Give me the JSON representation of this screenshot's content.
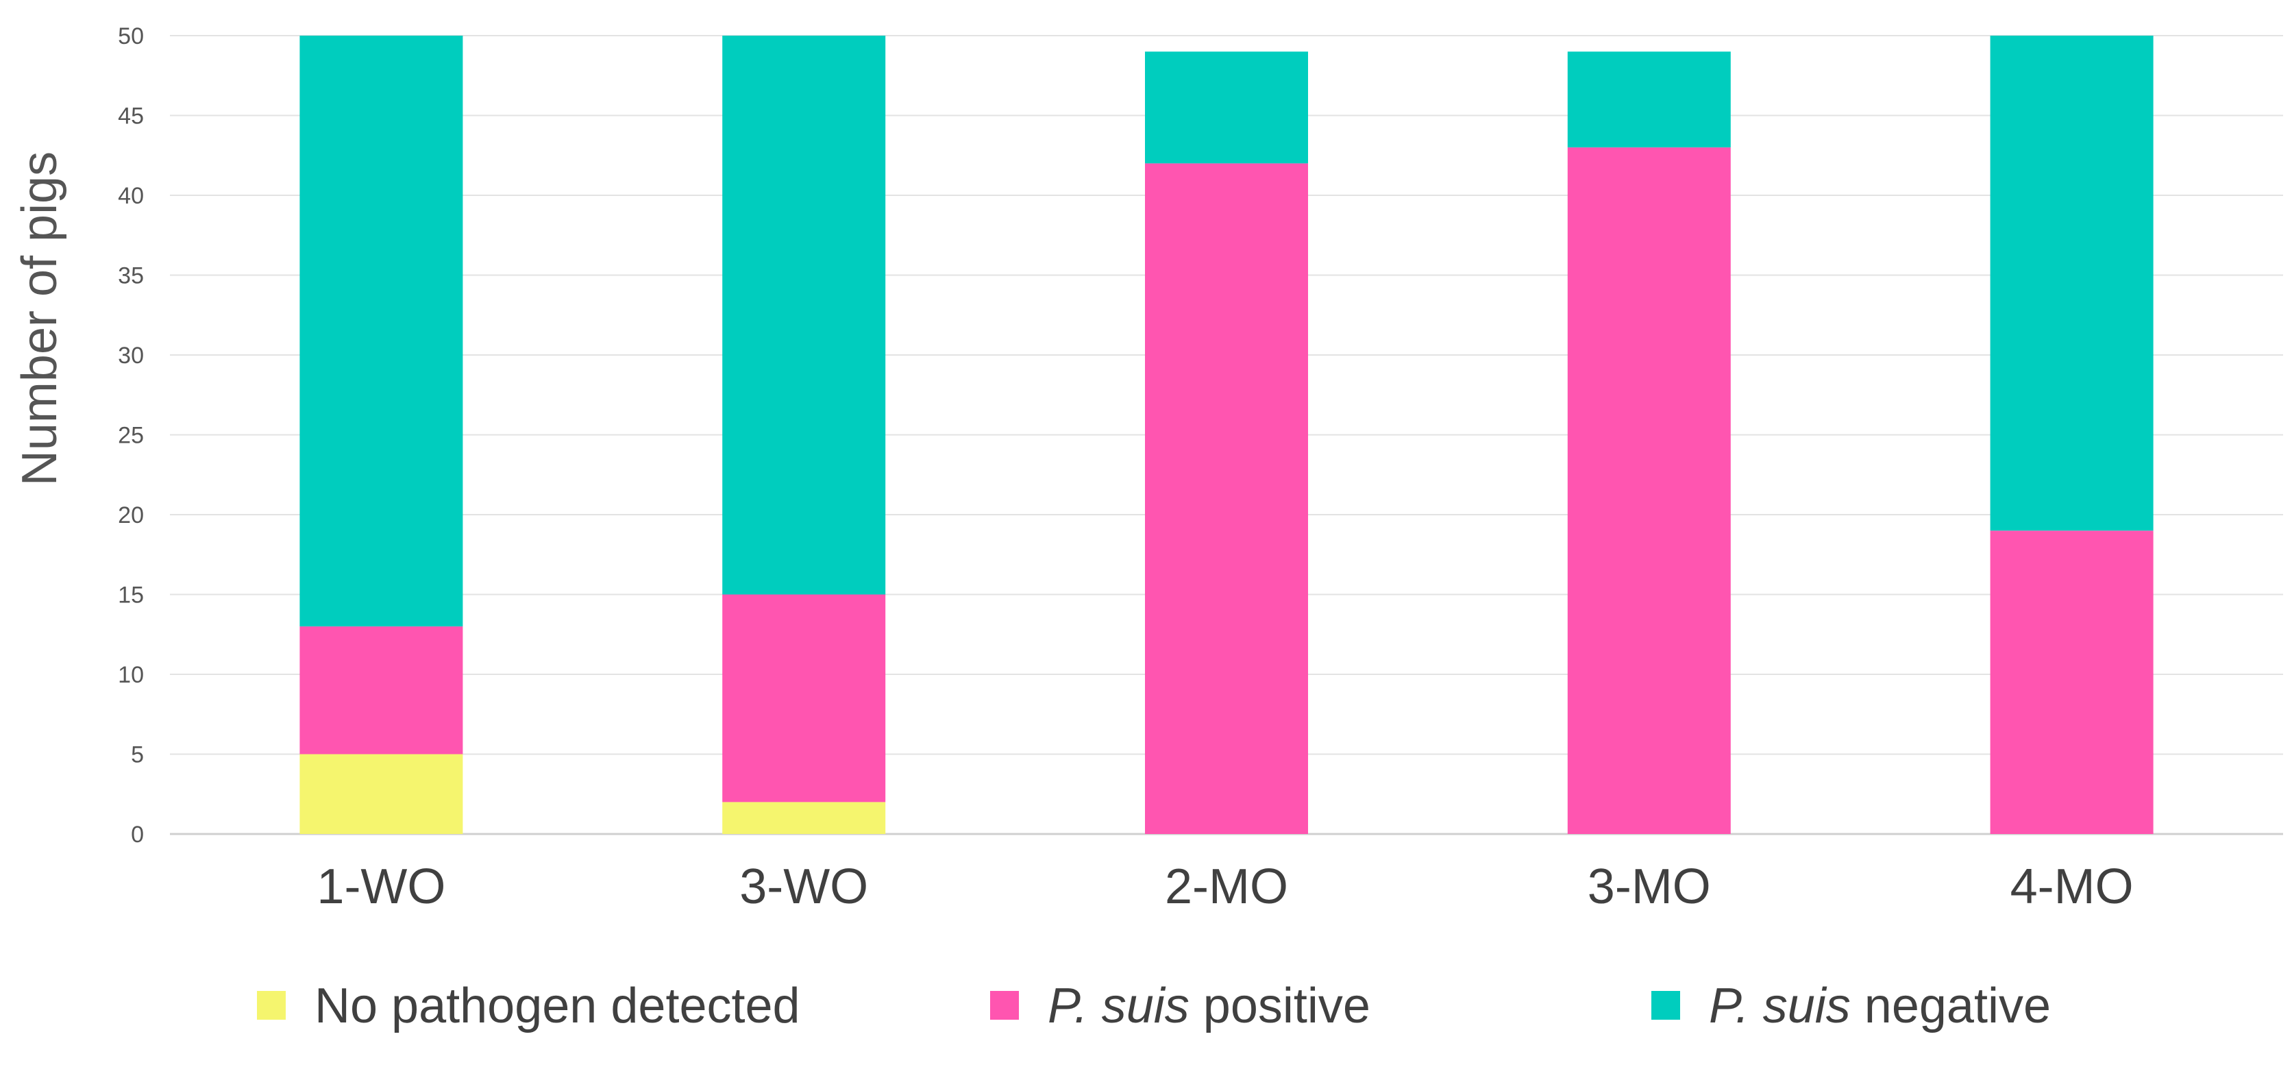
{
  "chart_data": {
    "type": "bar",
    "stacked": true,
    "title": "",
    "xlabel": "",
    "ylabel": "Number of pigs",
    "ylim": [
      0,
      50
    ],
    "yticks": [
      0,
      5,
      10,
      15,
      20,
      25,
      30,
      35,
      40,
      45,
      50
    ],
    "grid": true,
    "legend_position": "bottom",
    "categories": [
      "1-WO",
      "3-WO",
      "2-MO",
      "3-MO",
      "4-MO"
    ],
    "series": [
      {
        "name": "No pathogen detected",
        "name_italic": "",
        "name_rest": "No pathogen detected",
        "color": "#F5F56E",
        "values": [
          5,
          2,
          0,
          0,
          0
        ]
      },
      {
        "name": "P. suis positive",
        "name_italic": "P. suis",
        "name_rest": " positive",
        "color": "#FF55B0",
        "values": [
          8,
          13,
          42,
          43,
          19
        ]
      },
      {
        "name": "P. suis negative",
        "name_italic": "P. suis",
        "name_rest": " negative",
        "color": "#00CDBE",
        "values": [
          37,
          35,
          7,
          6,
          31
        ]
      }
    ]
  }
}
